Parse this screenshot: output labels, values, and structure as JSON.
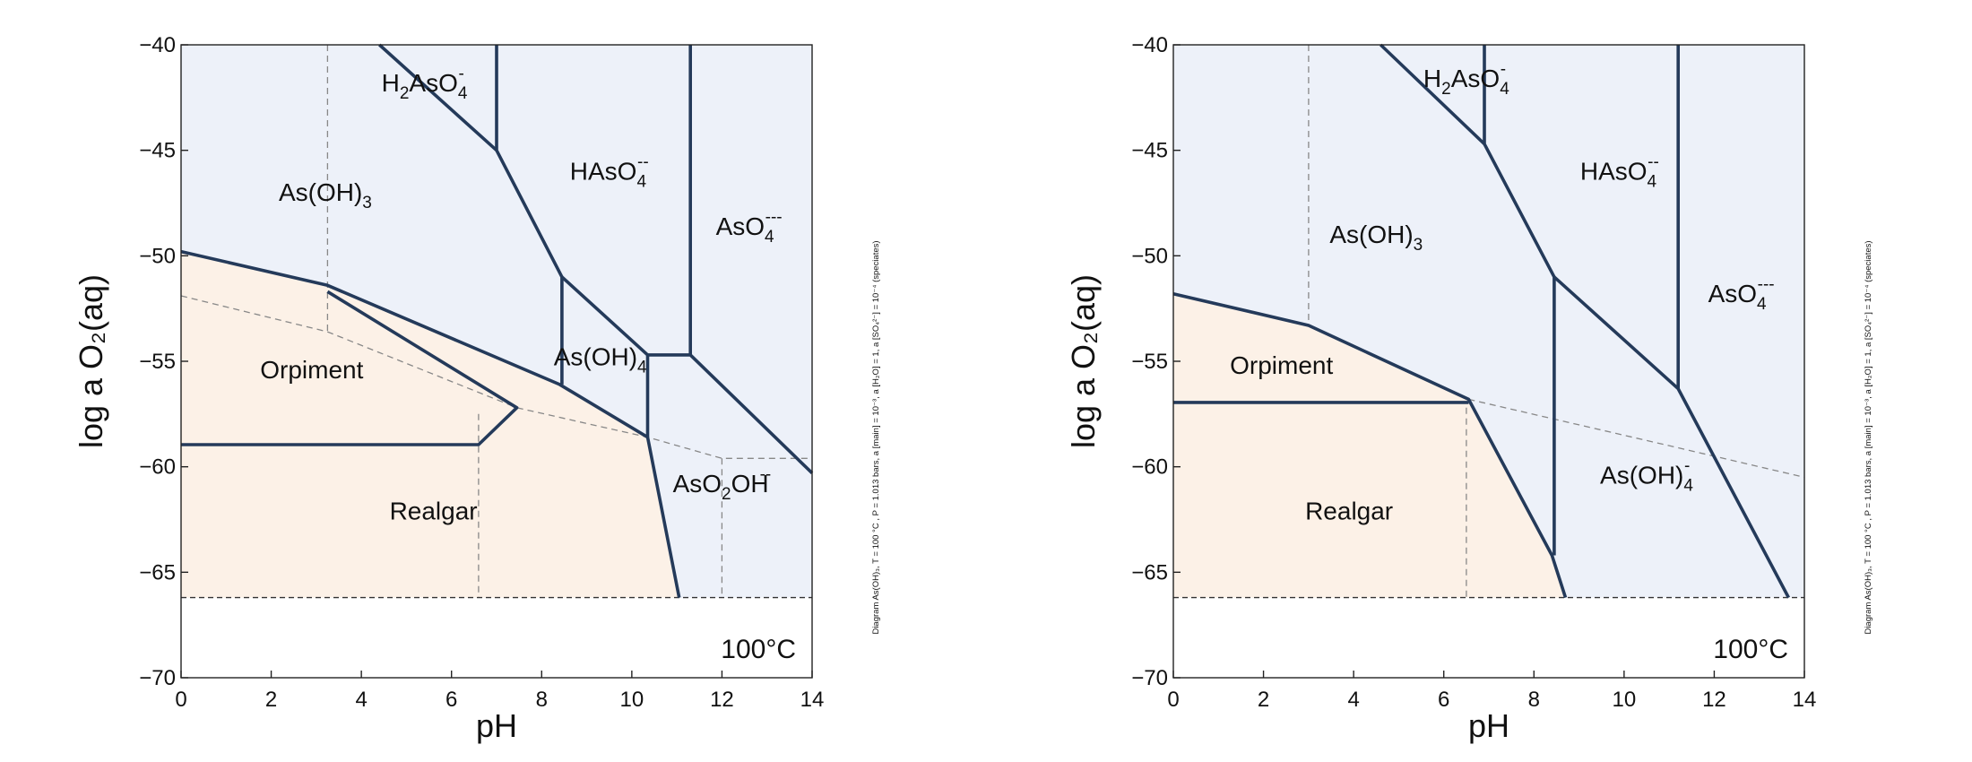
{
  "colors": {
    "aqueous_fill": "#edf1f9",
    "mineral_fill": "#fcf1e7",
    "boundary": "#243a5a",
    "dashed": "#888888"
  },
  "diagrams": [
    {
      "temperature": "100°C",
      "xlabel": "pH",
      "ylabel": "log a O₂(aq)",
      "side_note": "Diagram As(OH)₃, T = 100 °C , P = 1.013 bars, a [main] = 10⁻³, a [H₂O] = 1, a [SO₄²⁻] = 10⁻⁴ (speciates)",
      "xlim": [
        0,
        14
      ],
      "ylim": [
        -70,
        -40
      ],
      "x_ticks": [
        "0",
        "2",
        "4",
        "6",
        "8",
        "10",
        "12",
        "14"
      ],
      "y_ticks": [
        "−70",
        "−65",
        "−60",
        "−55",
        "−50",
        "−45",
        "−40"
      ],
      "water_limit_y": -66.2,
      "fields": [
        {
          "text": "As(OH)",
          "sub": "3",
          "sup": "",
          "x": 3.2,
          "y": -47.4
        },
        {
          "text": "H",
          "sub": "2",
          "mid": "AsO",
          "sub2": "4",
          "sup": "-",
          "x": 5.4,
          "y": -42.2
        },
        {
          "text": "HAsO",
          "sub": "4",
          "sup": "--",
          "x": 9.5,
          "y": -46.4
        },
        {
          "text": "AsO",
          "sub": "4",
          "sup": "---",
          "x": 12.6,
          "y": -49.0
        },
        {
          "text": "As(OH)",
          "sub": "4",
          "sup": "",
          "x": 9.3,
          "y": -55.2
        },
        {
          "text": "AsO",
          "sub": "2",
          "mid": "OH",
          "sup": "--",
          "x": 12.0,
          "y": -61.2
        },
        {
          "text": "Orpiment",
          "sub": "",
          "sup": "",
          "x": 2.9,
          "y": -55.8
        },
        {
          "text": "Realgar",
          "sub": "",
          "sup": "",
          "x": 5.6,
          "y": -62.5
        }
      ],
      "mineral_region": [
        [
          0,
          -49.8
        ],
        [
          3.25,
          -51.4
        ],
        [
          8.4,
          -56.1
        ],
        [
          10.35,
          -58.6
        ],
        [
          11.05,
          -66.2
        ],
        [
          0,
          -66.2
        ]
      ],
      "boundaries": [
        [
          [
            0,
            -49.8
          ],
          [
            3.25,
            -51.4
          ],
          [
            8.4,
            -56.1
          ],
          [
            10.35,
            -58.6
          ],
          [
            11.05,
            -66.2
          ]
        ],
        [
          [
            3.25,
            -51.7
          ],
          [
            7.45,
            -57.2
          ],
          [
            6.6,
            -58.95
          ],
          [
            0,
            -58.95
          ]
        ],
        [
          [
            4.4,
            -40
          ],
          [
            7,
            -45
          ]
        ],
        [
          [
            7,
            -40
          ],
          [
            7,
            -45
          ],
          [
            8.45,
            -51
          ],
          [
            8.45,
            -56.1
          ]
        ],
        [
          [
            8.45,
            -51
          ],
          [
            10.35,
            -54.7
          ],
          [
            10.35,
            -58.6
          ]
        ],
        [
          [
            10.35,
            -54.7
          ],
          [
            11.3,
            -54.7
          ],
          [
            14,
            -60.3
          ]
        ],
        [
          [
            11.3,
            -40
          ],
          [
            11.3,
            -54.7
          ]
        ]
      ],
      "dashed": [
        [
          [
            3.25,
            -40
          ],
          [
            3.25,
            -53.6
          ]
        ],
        [
          [
            0,
            -51.9
          ],
          [
            3.25,
            -53.6
          ],
          [
            7.45,
            -57.2
          ],
          [
            10.35,
            -58.6
          ],
          [
            12,
            -59.6
          ],
          [
            14,
            -59.6
          ]
        ],
        [
          [
            6.6,
            -57.5
          ],
          [
            6.6,
            -66.2
          ]
        ],
        [
          [
            12,
            -59.6
          ],
          [
            12,
            -66.2
          ]
        ]
      ]
    },
    {
      "temperature": "100°C",
      "xlabel": "pH",
      "ylabel": "log a O₂(aq)",
      "side_note": "Diagram As(OH)₃, T = 100 °C , P = 1.013 bars, a [main] = 10⁻³, a [H₂O] = 1, a [SO₄²⁻] = 10⁻⁴ (speciates)",
      "xlim": [
        0,
        14
      ],
      "ylim": [
        -70,
        -40
      ],
      "x_ticks": [
        "0",
        "2",
        "4",
        "6",
        "8",
        "10",
        "12",
        "14"
      ],
      "y_ticks": [
        "−70",
        "−65",
        "−60",
        "−55",
        "−50",
        "−45",
        "−40"
      ],
      "water_limit_y": -66.2,
      "fields": [
        {
          "text": "As(OH)",
          "sub": "3",
          "sup": "",
          "x": 4.5,
          "y": -49.4
        },
        {
          "text": "H",
          "sub": "2",
          "mid": "AsO",
          "sub2": "4",
          "sup": "-",
          "x": 6.5,
          "y": -42.0
        },
        {
          "text": "HAsO",
          "sub": "4",
          "sup": "--",
          "x": 9.9,
          "y": -46.4
        },
        {
          "text": "AsO",
          "sub": "4",
          "sup": "---",
          "x": 12.6,
          "y": -52.2
        },
        {
          "text": "As(OH)",
          "sub": "4",
          "sup": "-",
          "x": 10.5,
          "y": -60.8
        },
        {
          "text": "Orpiment",
          "sub": "",
          "sup": "",
          "x": 2.4,
          "y": -55.6
        },
        {
          "text": "Realgar",
          "sub": "",
          "sup": "",
          "x": 3.9,
          "y": -62.5
        }
      ],
      "mineral_region": [
        [
          0,
          -51.8
        ],
        [
          3,
          -53.3
        ],
        [
          6.55,
          -56.8
        ],
        [
          8.4,
          -64.2
        ],
        [
          8.7,
          -66.2
        ],
        [
          0,
          -66.2
        ]
      ],
      "boundaries": [
        [
          [
            0,
            -51.8
          ],
          [
            3,
            -53.3
          ],
          [
            6.55,
            -56.8
          ],
          [
            8.4,
            -64.2
          ],
          [
            8.7,
            -66.2
          ]
        ],
        [
          [
            0,
            -56.95
          ],
          [
            6.55,
            -56.95
          ]
        ],
        [
          [
            4.6,
            -40
          ],
          [
            6.9,
            -44.7
          ]
        ],
        [
          [
            6.9,
            -40
          ],
          [
            6.9,
            -44.7
          ],
          [
            8.45,
            -51
          ],
          [
            8.45,
            -64.2
          ]
        ],
        [
          [
            8.45,
            -51
          ],
          [
            11.2,
            -56.3
          ],
          [
            13.65,
            -66.2
          ]
        ],
        [
          [
            11.2,
            -40
          ],
          [
            11.2,
            -56.3
          ]
        ]
      ],
      "dashed": [
        [
          [
            3,
            -40
          ],
          [
            3,
            -53.3
          ]
        ],
        [
          [
            6.55,
            -56.8
          ],
          [
            11.2,
            -59.1
          ],
          [
            14,
            -60.5
          ]
        ],
        [
          [
            6.5,
            -57.2
          ],
          [
            6.5,
            -66.2
          ]
        ]
      ]
    }
  ]
}
